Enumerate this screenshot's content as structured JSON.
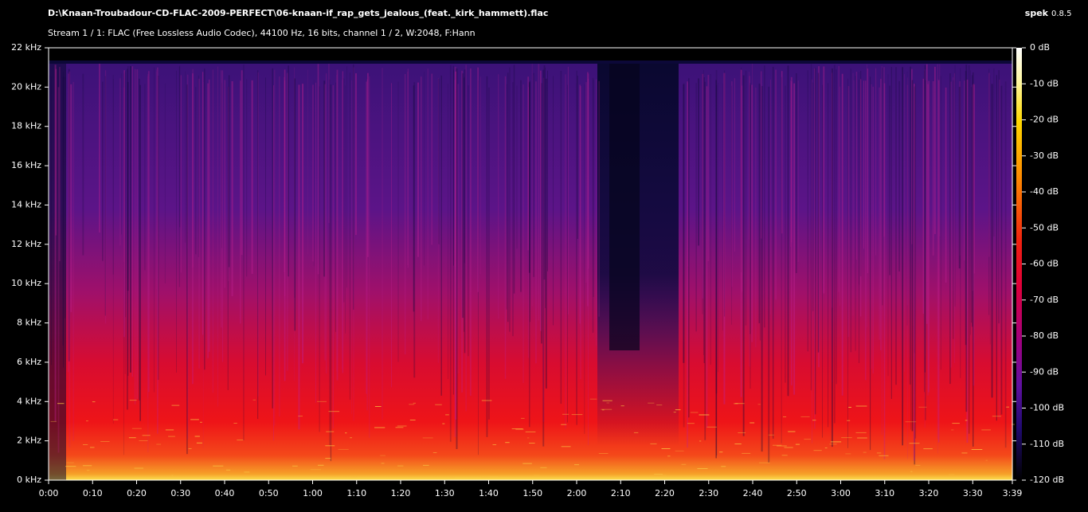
{
  "chart_data": {
    "type": "spectrogram",
    "title": "D:\\Knaan-Troubadour-CD-FLAC-2009-PERFECT\\06-knaan-if_rap_gets_jealous_(feat._kirk_hammett).flac",
    "subtitle": "Stream 1 / 1: FLAC (Free Lossless Audio Codec), 44100 Hz, 16 bits, channel 1 / 2, W:2048, F:Hann",
    "app_name": "spek",
    "app_version": "0.8.5",
    "xlim": [
      0,
      219
    ],
    "xticks": [
      {
        "value": 0,
        "label": "0:00"
      },
      {
        "value": 10,
        "label": "0:10"
      },
      {
        "value": 20,
        "label": "0:20"
      },
      {
        "value": 30,
        "label": "0:30"
      },
      {
        "value": 40,
        "label": "0:40"
      },
      {
        "value": 50,
        "label": "0:50"
      },
      {
        "value": 60,
        "label": "1:00"
      },
      {
        "value": 70,
        "label": "1:10"
      },
      {
        "value": 80,
        "label": "1:20"
      },
      {
        "value": 90,
        "label": "1:30"
      },
      {
        "value": 100,
        "label": "1:40"
      },
      {
        "value": 110,
        "label": "1:50"
      },
      {
        "value": 120,
        "label": "2:00"
      },
      {
        "value": 130,
        "label": "2:10"
      },
      {
        "value": 140,
        "label": "2:20"
      },
      {
        "value": 150,
        "label": "2:30"
      },
      {
        "value": 160,
        "label": "2:40"
      },
      {
        "value": 170,
        "label": "2:50"
      },
      {
        "value": 180,
        "label": "3:00"
      },
      {
        "value": 190,
        "label": "3:10"
      },
      {
        "value": 200,
        "label": "3:20"
      },
      {
        "value": 210,
        "label": "3:30"
      },
      {
        "value": 219,
        "label": "3:39"
      }
    ],
    "ylim": [
      0,
      22
    ],
    "yticks": [
      {
        "value": 0,
        "label": "0 kHz"
      },
      {
        "value": 2,
        "label": "2 kHz"
      },
      {
        "value": 4,
        "label": "4 kHz"
      },
      {
        "value": 6,
        "label": "6 kHz"
      },
      {
        "value": 8,
        "label": "8 kHz"
      },
      {
        "value": 10,
        "label": "10 kHz"
      },
      {
        "value": 12,
        "label": "12 kHz"
      },
      {
        "value": 14,
        "label": "14 kHz"
      },
      {
        "value": 16,
        "label": "16 kHz"
      },
      {
        "value": 18,
        "label": "18 kHz"
      },
      {
        "value": 20,
        "label": "20 kHz"
      },
      {
        "value": 22,
        "label": "22 kHz"
      }
    ],
    "zlim": [
      -120,
      0
    ],
    "zticks": [
      {
        "value": 0,
        "label": "0 dB"
      },
      {
        "value": -10,
        "label": "-10 dB"
      },
      {
        "value": -20,
        "label": "-20 dB"
      },
      {
        "value": -30,
        "label": "-30 dB"
      },
      {
        "value": -40,
        "label": "-40 dB"
      },
      {
        "value": -50,
        "label": "-50 dB"
      },
      {
        "value": -60,
        "label": "-60 dB"
      },
      {
        "value": -70,
        "label": "-70 dB"
      },
      {
        "value": -80,
        "label": "-80 dB"
      },
      {
        "value": -90,
        "label": "-90 dB"
      },
      {
        "value": -100,
        "label": "-100 dB"
      },
      {
        "value": -110,
        "label": "-110 dB"
      },
      {
        "value": -120,
        "label": "-120 dB"
      }
    ]
  }
}
